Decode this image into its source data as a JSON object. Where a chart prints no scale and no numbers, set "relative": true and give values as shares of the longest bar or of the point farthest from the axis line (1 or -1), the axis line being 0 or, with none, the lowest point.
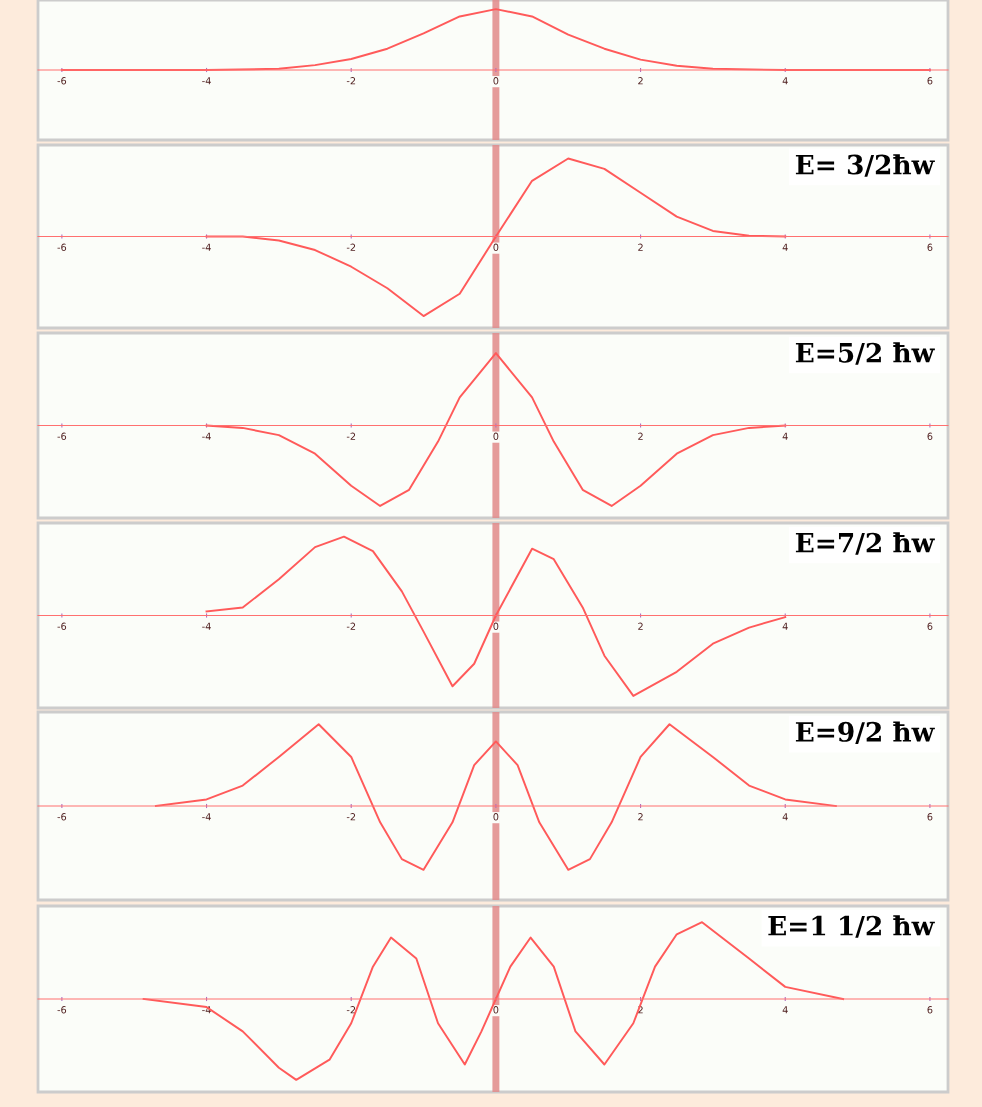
{
  "chart_data": [
    {
      "type": "line",
      "relative": true,
      "xlim": [
        -6.33,
        6.25
      ],
      "xticks": [
        -6,
        -4,
        -2,
        0,
        2,
        4,
        6
      ],
      "tick_labels": "x",
      "grid": false,
      "legend": false,
      "marker": "none",
      "line_style": "solid",
      "ref_lines": [
        {
          "axis": "x",
          "value": 0,
          "color": "#e08a8a"
        }
      ],
      "series": [
        {
          "color": "#ff5a5a",
          "x": [
            -6,
            -4,
            -3,
            -2.5,
            -2,
            -1.5,
            -1,
            -0.5,
            0,
            0.5,
            1,
            1.5,
            2,
            2.5,
            3,
            4,
            6
          ],
          "values": [
            0,
            0,
            0.02,
            0.08,
            0.18,
            0.35,
            0.6,
            0.88,
            1,
            0.88,
            0.58,
            0.35,
            0.17,
            0.07,
            0.02,
            0,
            0
          ]
        }
      ]
    },
    {
      "type": "line",
      "relative": true,
      "xlim": [
        -6.33,
        6.25
      ],
      "xticks": [
        -6,
        -4,
        -2,
        0,
        2,
        4,
        6
      ],
      "tick_labels": "x",
      "grid": false,
      "legend": false,
      "marker": "none",
      "line_style": "solid",
      "annotations": [
        "E= 3/2ħw"
      ],
      "ref_lines": [
        {
          "axis": "x",
          "value": 0,
          "color": "#e08a8a"
        }
      ],
      "series": [
        {
          "color": "#ff5a5a",
          "x": [
            -4,
            -3.5,
            -3,
            -2.5,
            -2,
            -1.5,
            -1,
            -0.5,
            0,
            0.5,
            1,
            1.5,
            2,
            2.5,
            3,
            3.5,
            4
          ],
          "values": [
            0,
            0,
            -0.05,
            -0.17,
            -0.38,
            -0.65,
            -1.0,
            -0.72,
            0,
            0.7,
            0.98,
            0.85,
            0.55,
            0.25,
            0.07,
            0.01,
            0
          ]
        }
      ]
    },
    {
      "type": "line",
      "relative": true,
      "xlim": [
        -6.33,
        6.25
      ],
      "xticks": [
        -6,
        -4,
        -2,
        0,
        2,
        4,
        6
      ],
      "tick_labels": "x",
      "grid": false,
      "legend": false,
      "marker": "none",
      "line_style": "solid",
      "annotations": [
        "E=5/2 ħw"
      ],
      "ref_lines": [
        {
          "axis": "x",
          "value": 0,
          "color": "#e08a8a"
        }
      ],
      "series": [
        {
          "color": "#ff5a5a",
          "x": [
            -4,
            -3.5,
            -3,
            -2.5,
            -2,
            -1.6,
            -1.2,
            -0.8,
            -0.5,
            0,
            0.5,
            0.8,
            1.2,
            1.6,
            2,
            2.5,
            3,
            3.5,
            4
          ],
          "values": [
            0,
            -0.03,
            -0.12,
            -0.35,
            -0.75,
            -1.0,
            -0.8,
            -0.2,
            0.35,
            0.9,
            0.35,
            -0.2,
            -0.8,
            -1.0,
            -0.75,
            -0.35,
            -0.12,
            -0.03,
            0
          ]
        }
      ]
    },
    {
      "type": "line",
      "relative": true,
      "xlim": [
        -6.33,
        6.25
      ],
      "xticks": [
        -6,
        -4,
        -2,
        0,
        2,
        4,
        6
      ],
      "tick_labels": "x",
      "grid": false,
      "legend": false,
      "marker": "none",
      "line_style": "solid",
      "annotations": [
        "E=7/2 ħw"
      ],
      "ref_lines": [
        {
          "axis": "x",
          "value": 0,
          "color": "#e08a8a"
        }
      ],
      "series": [
        {
          "color": "#ff5a5a",
          "x": [
            -4,
            -3.5,
            -3,
            -2.5,
            -2.1,
            -1.7,
            -1.3,
            -1,
            -0.6,
            -0.3,
            0,
            0.5,
            0.8,
            1.2,
            1.5,
            1.9,
            2.5,
            3,
            3.5,
            4
          ],
          "values": [
            0.05,
            0.1,
            0.45,
            0.85,
            0.98,
            0.8,
            0.3,
            -0.2,
            -0.88,
            -0.6,
            0,
            0.83,
            0.7,
            0.1,
            -0.5,
            -1.0,
            -0.7,
            -0.35,
            -0.15,
            -0.02
          ]
        }
      ]
    },
    {
      "type": "line",
      "relative": true,
      "xlim": [
        -6.33,
        6.25
      ],
      "xticks": [
        -6,
        -4,
        -2,
        0,
        2,
        4,
        6
      ],
      "tick_labels": "x",
      "grid": false,
      "legend": false,
      "marker": "none",
      "line_style": "solid",
      "annotations": [
        "E=9/2 ħw"
      ],
      "ref_lines": [
        {
          "axis": "x",
          "value": 0,
          "color": "#e08a8a"
        }
      ],
      "series": [
        {
          "color": "#ff5a5a",
          "x": [
            -4.7,
            -4,
            -3.5,
            -3,
            -2.45,
            -2,
            -1.6,
            -1.3,
            -1,
            -0.6,
            -0.3,
            0,
            0.3,
            0.6,
            1,
            1.3,
            1.6,
            2,
            2.4,
            3,
            3.5,
            4,
            4.7
          ],
          "values": [
            0,
            0.08,
            0.25,
            0.6,
            1.0,
            0.6,
            -0.2,
            -0.65,
            -0.78,
            -0.2,
            0.5,
            0.79,
            0.5,
            -0.2,
            -0.78,
            -0.65,
            -0.2,
            0.6,
            1.0,
            0.6,
            0.25,
            0.08,
            0
          ]
        }
      ]
    },
    {
      "type": "line",
      "relative": true,
      "xlim": [
        -6.33,
        6.25
      ],
      "xticks": [
        -6,
        -4,
        -2,
        0,
        2,
        4,
        6
      ],
      "tick_labels": "x",
      "grid": false,
      "legend": false,
      "marker": "none",
      "line_style": "solid",
      "annotations": [
        "E=1 1/2 ħw"
      ],
      "ref_lines": [
        {
          "axis": "x",
          "value": 0,
          "color": "#e08a8a"
        }
      ],
      "series": [
        {
          "color": "#ff5a5a",
          "x": [
            -4.87,
            -4,
            -3.5,
            -3,
            -2.76,
            -2.3,
            -2,
            -1.7,
            -1.45,
            -1.1,
            -0.8,
            -0.43,
            -0.2,
            0,
            0.2,
            0.48,
            0.8,
            1.1,
            1.5,
            1.9,
            2.2,
            2.5,
            2.85,
            3.5,
            4,
            4.8
          ],
          "values": [
            0,
            -0.1,
            -0.4,
            -0.85,
            -1.0,
            -0.75,
            -0.3,
            0.4,
            0.76,
            0.5,
            -0.3,
            -0.81,
            -0.4,
            0,
            0.4,
            0.76,
            0.4,
            -0.4,
            -0.81,
            -0.3,
            0.4,
            0.8,
            0.95,
            0.5,
            0.15,
            0
          ]
        }
      ]
    }
  ]
}
